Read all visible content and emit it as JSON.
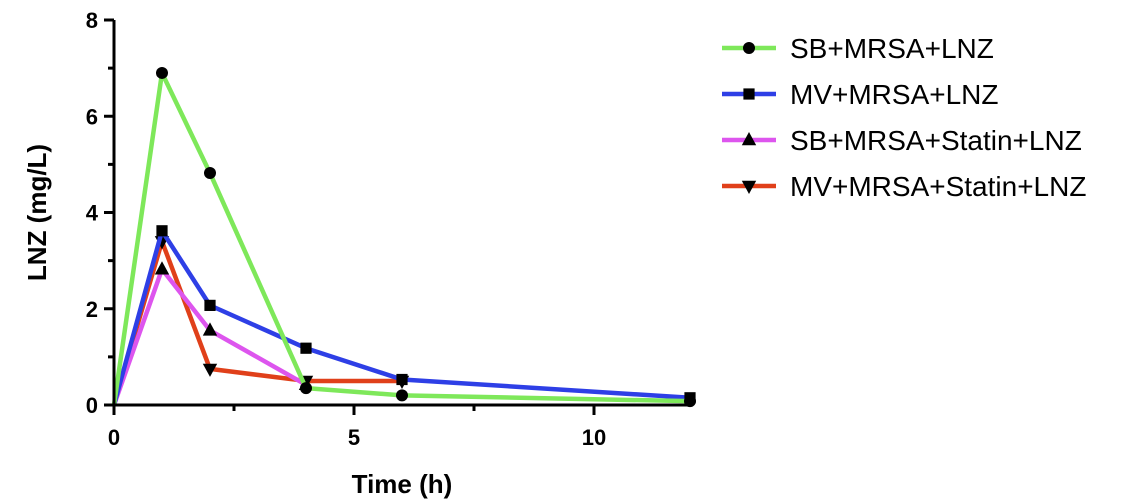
{
  "chart_data": {
    "type": "line",
    "xlabel": "Time (h)",
    "ylabel": "LNZ (mg/L)",
    "xlim": [
      0,
      12
    ],
    "ylim": [
      0,
      8
    ],
    "xticks": [
      "0",
      "5",
      "10"
    ],
    "yticks": [
      "0",
      "2",
      "4",
      "6",
      "8"
    ],
    "grid": false,
    "legend_position": "top-right",
    "series": [
      {
        "name": "SB+MRSA+LNZ",
        "color": "#7ee85a",
        "marker": "circle",
        "x": [
          0,
          1,
          2,
          4,
          6,
          12
        ],
        "y": [
          0,
          6.9,
          4.82,
          0.35,
          0.2,
          0.08
        ]
      },
      {
        "name": "MV+MRSA+LNZ",
        "color": "#2e3fe6",
        "marker": "square",
        "x": [
          0,
          1,
          2,
          4,
          6,
          12
        ],
        "y": [
          0,
          3.62,
          2.07,
          1.18,
          0.53,
          0.15
        ]
      },
      {
        "name": "SB+MRSA+Statin+LNZ",
        "color": "#dd55ee",
        "marker": "triangle-up",
        "x": [
          0,
          1,
          2,
          4
        ],
        "y": [
          0,
          2.82,
          1.55,
          0.42
        ]
      },
      {
        "name": "MV+MRSA+Statin+LNZ",
        "color": "#e0401a",
        "marker": "triangle-down",
        "x": [
          0,
          1,
          2,
          4,
          6
        ],
        "y": [
          0,
          3.4,
          0.75,
          0.5,
          0.5
        ]
      }
    ]
  }
}
